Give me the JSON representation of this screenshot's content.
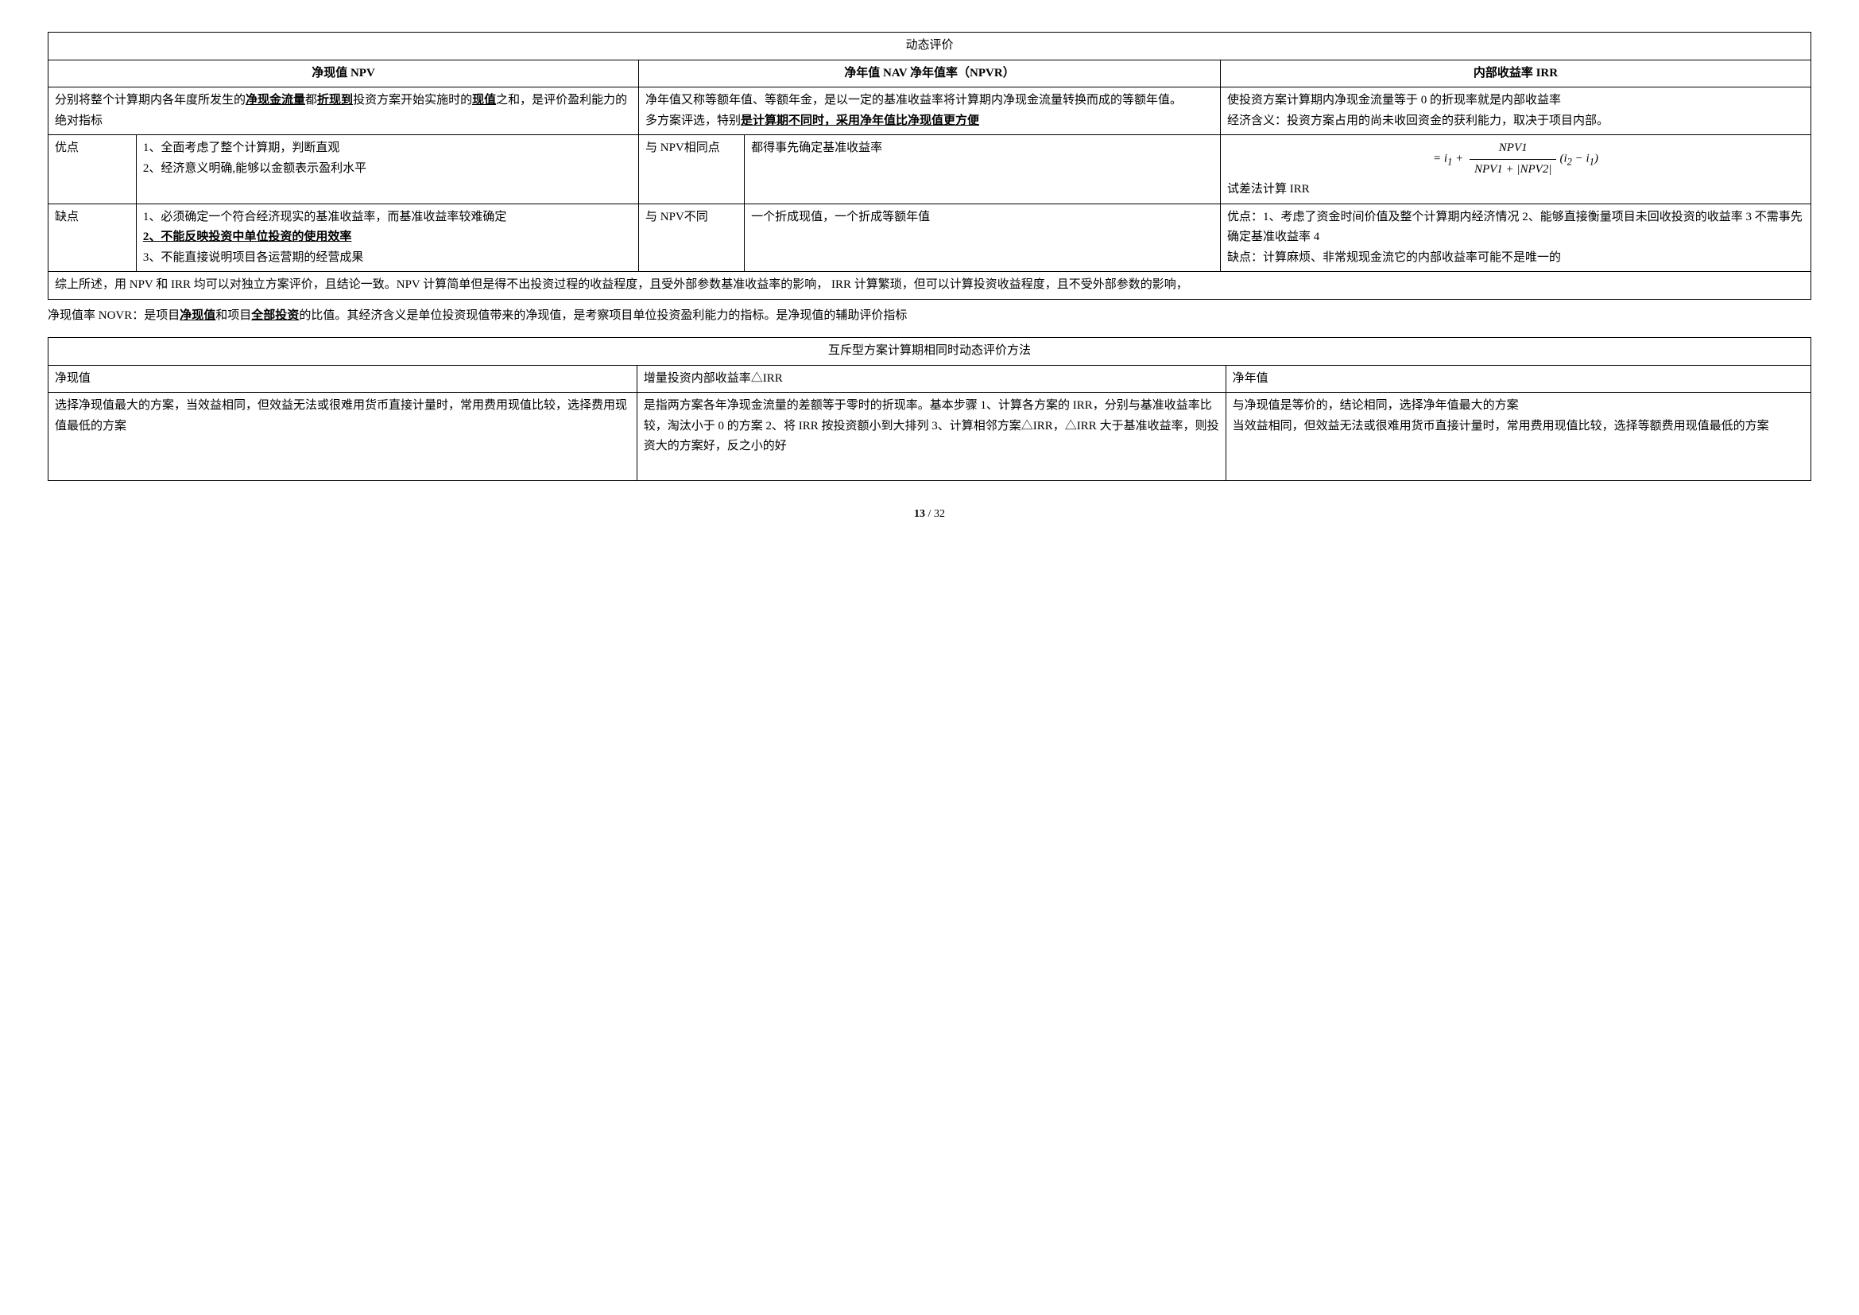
{
  "page": {
    "current": "13",
    "total": "32"
  },
  "t1": {
    "title": "动态评价",
    "h1": "净现值 NPV",
    "h2": "净年值 NAV    净年值率（NPVR）",
    "h3": "内部收益率 IRR",
    "r1c1a": "分别将整个计算期内各年度所发生的",
    "r1c1b": "净现金流量",
    "r1c1c": "都",
    "r1c1d": "折现到",
    "r1c1e": "投资方案开始实施时的",
    "r1c1f": "现值",
    "r1c1g": "之和，是评价盈利能力的绝对指标",
    "r1c2a": "净年值又称等额年值、等额年金，是以一定的基准收益率将计算期内净现金流量转换而成的等额年值。",
    "r1c2b": "多方案评选，特别",
    "r1c2c": "是计算期不同时，采用净年值比净现值更方便",
    "r1c3": "使投资方案计算期内净现金流量等于 0 的折现率就是内部收益率",
    "r1c3b": "经济含义：投资方案占用的尚未收回资金的获利能力，取决于项目内部。",
    "r2l": "优点",
    "r2c1": "1、全面考虑了整个计算期，判断直观",
    "r2c1b": "2、经济意义明确,能够以金额表示盈利水平",
    "r2c2l": "与   NPV相同点",
    "r2c2r": "都得事先确定基准收益率",
    "r2c3a": "试差法计算 IRR",
    "formula": {
      "lead": "= i",
      "sub1": "1",
      "plus": " + ",
      "num": "NPV1",
      "den_a": "NPV1 + ",
      "den_b": "|NPV2|",
      "tail_a": "(i",
      "tail_sub2": "2",
      "tail_mid": " − i",
      "tail_sub1": "1",
      "tail_end": ")"
    },
    "r3l": "缺点",
    "r3c1a": "1、必须确定一个符合经济现实的基准收益率，而基准收益率较难确定",
    "r3c1b": "2、不能反映投资中单位投资的使用效率",
    "r3c1c": "3、不能直接说明项目各运营期的经营成果",
    "r3c2l": "与   NPV不同",
    "r3c2r": "一个折成现值，一个折成等额年值",
    "r3c3": "优点：1、考虑了资金时间价值及整个计算期内经济情况   2、能够直接衡量项目未回收投资的收益率  3 不需事先确定基准收益率  4",
    "r3c3b": "缺点：计算麻烦、非常规现金流它的内部收益率可能不是唯一的",
    "r4": "综上所述，用 NPV  和 IRR 均可以对独立方案评价，且结论一致。NPV 计算简单但是得不出投资过程的收益程度，且受外部参数基准收益率的影响，  IRR 计算繁琐，但可以计算投资收益程度，且不受外部参数的影响，"
  },
  "para": {
    "a": "净现值率 NOVR：是项目",
    "b": "净现值",
    "c": "和项目",
    "d": "全部投资",
    "e": "的比值。其经济含义是单位投资现值带来的净现值，是考察项目单位投资盈利能力的指标。是净现值的辅助评价指标"
  },
  "t2": {
    "title": "互斥型方案计算期相同时动态评价方法",
    "h1": "净现值",
    "h2": "增量投资内部收益率△IRR",
    "h3": "净年值",
    "r1c1": "选择净现值最大的方案，当效益相同，但效益无法或很难用货币直接计量时，常用费用现值比较，选择费用现值最低的方案",
    "r1c2": "是指两方案各年净现金流量的差额等于零时的折现率。基本步骤 1、计算各方案的 IRR，分别与基准收益率比较，淘汰小于 0 的方案  2、将 IRR 按投资额小到大排列  3、计算相邻方案△IRR，△IRR 大于基准收益率，则投资大的方案好，反之小的好",
    "r1c3a": "与净现值是等价的，结论相同，选择净年值最大的方案",
    "r1c3b": "当效益相同，但效益无法或很难用货币直接计量时，常用费用现值比较，选择等额费用现值最低的方案"
  }
}
